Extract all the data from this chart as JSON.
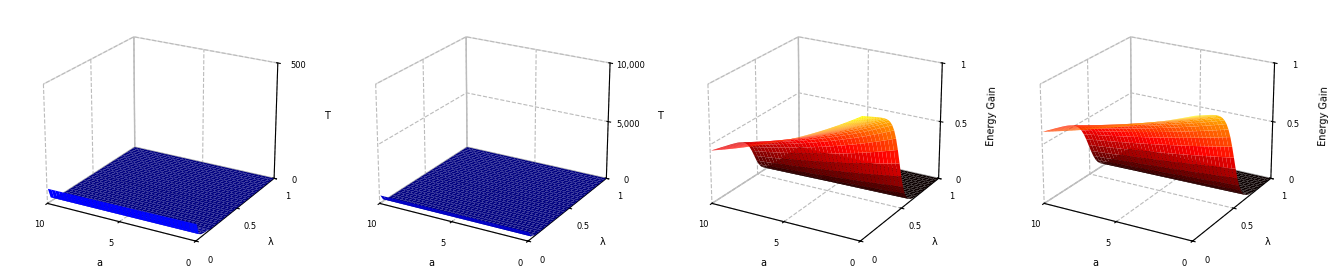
{
  "n_a": 40,
  "n_lam": 40,
  "a_min": 0.0,
  "a_max": 10.0,
  "lam_min": 0.0,
  "lam_max": 1.0,
  "subplot1_zlabel": "T",
  "subplot2_zlabel": "T",
  "subplot3_zlabel": "Energy Gain",
  "subplot4_zlabel": "Energy Gain",
  "subplot1_zlim": [
    0,
    500
  ],
  "subplot2_zlim": [
    0,
    10000
  ],
  "subplot3_zlim": [
    0,
    1
  ],
  "subplot4_zlim": [
    0,
    1
  ],
  "subplot1_zticks": [
    0,
    500
  ],
  "subplot2_zticks": [
    0,
    5000,
    10000
  ],
  "subplot3_zticks": [
    0,
    0.5,
    1
  ],
  "subplot4_zticks": [
    0,
    0.5,
    1
  ],
  "xlabel": "a",
  "ylabel": "λ",
  "figsize": [
    13.29,
    2.73
  ],
  "dpi": 100,
  "elev": 22,
  "azim": -60,
  "background_color": "white"
}
